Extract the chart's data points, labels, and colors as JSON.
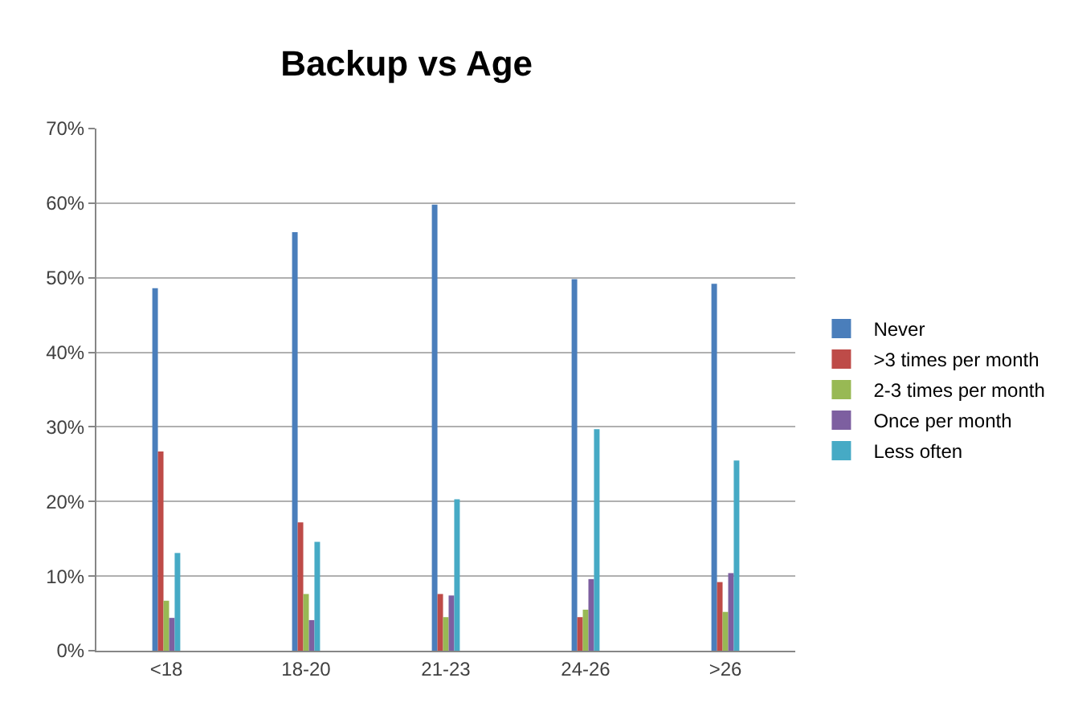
{
  "chart_data": {
    "type": "bar",
    "title": "Backup vs Age",
    "categories": [
      "<18",
      "18-20",
      "21-23",
      "24-26",
      ">26"
    ],
    "series": [
      {
        "name": "Never",
        "color": "#4a7ebb",
        "values": [
          48.6,
          56.1,
          59.8,
          49.8,
          49.2
        ]
      },
      {
        "name": ">3 times per month",
        "color": "#be4b48",
        "values": [
          26.7,
          17.2,
          7.6,
          4.5,
          9.2
        ]
      },
      {
        "name": "2-3 times per month",
        "color": "#98b954",
        "values": [
          6.7,
          7.6,
          4.5,
          5.5,
          5.2
        ]
      },
      {
        "name": "Once per month",
        "color": "#7d5fa0",
        "values": [
          4.4,
          4.1,
          7.4,
          9.6,
          10.4
        ]
      },
      {
        "name": "Less often",
        "color": "#46aac5",
        "values": [
          13.1,
          14.6,
          20.3,
          29.7,
          25.5
        ]
      }
    ],
    "ylim": [
      0,
      70
    ],
    "yticks": [
      {
        "value": 0,
        "label": "0%"
      },
      {
        "value": 10,
        "label": "10%"
      },
      {
        "value": 20,
        "label": "20%"
      },
      {
        "value": 30,
        "label": "30%"
      },
      {
        "value": 40,
        "label": "40%"
      },
      {
        "value": 50,
        "label": "50%"
      },
      {
        "value": 60,
        "label": "60%"
      },
      {
        "value": 70,
        "label": "70%"
      }
    ],
    "grid": "y",
    "legend": "right"
  }
}
